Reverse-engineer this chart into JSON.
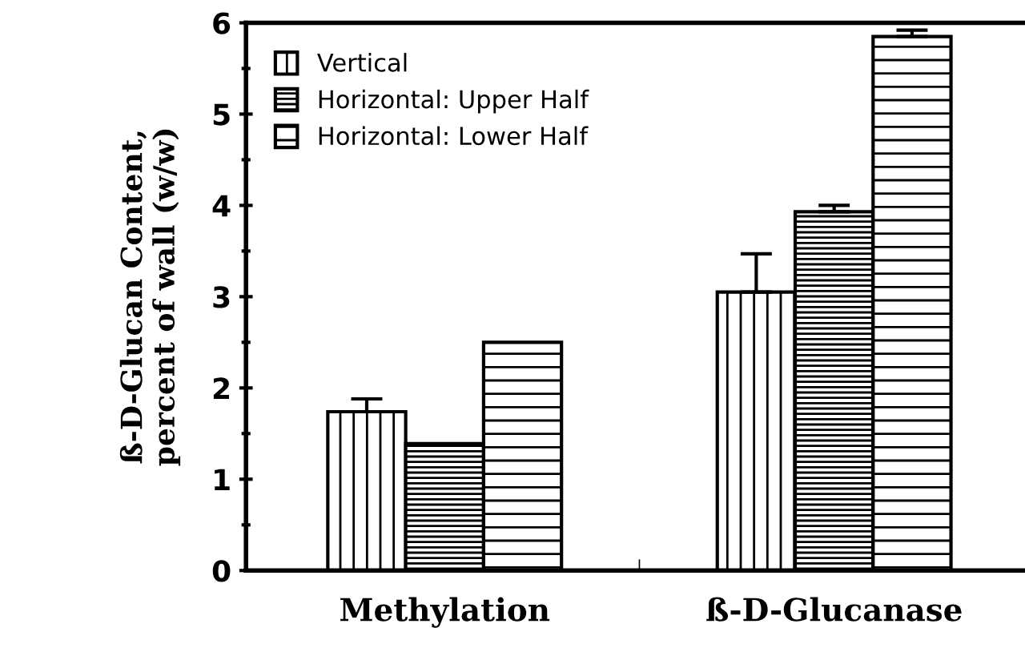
{
  "chart_data": {
    "type": "bar",
    "ylabel": "ß-D-Glucan Content,\npercent of wall (w/w)",
    "categories": [
      "Methylation",
      "ß-D-Glucanase"
    ],
    "series": [
      {
        "name": "Vertical",
        "color": "#000000",
        "values": [
          1.74,
          3.05
        ],
        "errors": [
          0.14,
          0.42
        ]
      },
      {
        "name": "Horizontal: Upper Half",
        "color": "#000000",
        "values": [
          1.39,
          3.93
        ],
        "errors": [
          null,
          0.07
        ]
      },
      {
        "name": "Horizontal: Lower Half",
        "color": "#000000",
        "values": [
          2.5,
          5.85
        ],
        "errors": [
          null,
          0.07
        ]
      }
    ],
    "ylim": [
      0,
      6
    ],
    "yticks": [
      0,
      1,
      2,
      3,
      4,
      5,
      6
    ],
    "grid": false,
    "legend": "top left"
  }
}
